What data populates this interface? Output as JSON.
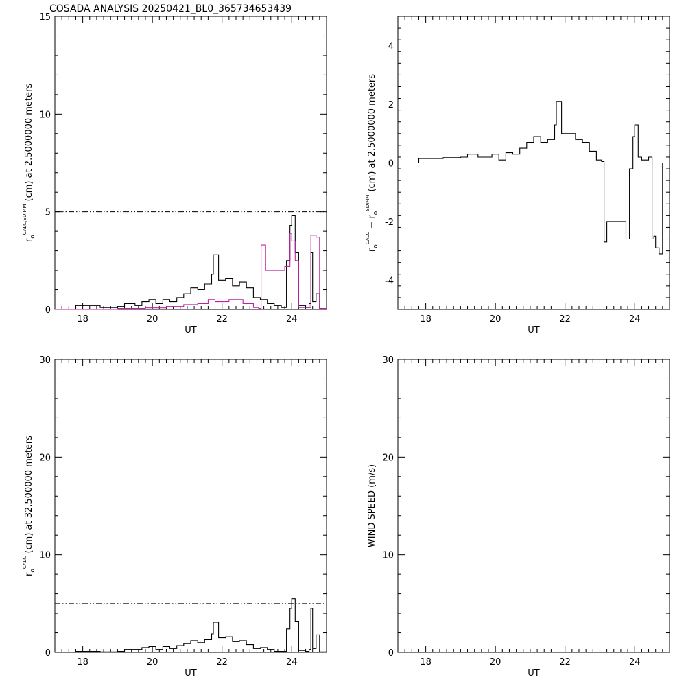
{
  "figure": {
    "title": "COSADA ANALYSIS 20250421_BL0_365734653439"
  },
  "chart_data": [
    {
      "id": "top-left",
      "type": "line",
      "xlabel": "UT",
      "ylabel": {
        "symbol": "r",
        "subscript": "o",
        "superscript": "CALC,SDIMM",
        "suffix": "(cm)  at  2.5000000 meters"
      },
      "xlim": [
        17.2,
        25.0
      ],
      "ylim": [
        0,
        15
      ],
      "xticks": [
        18,
        20,
        22,
        24
      ],
      "yticks": [
        0,
        5,
        10,
        15
      ],
      "reference_line": {
        "y": 5,
        "style": "dash-dot-dot",
        "color": "#000000"
      },
      "series": [
        {
          "color": "#000000",
          "x": [
            17.2,
            17.8,
            18.5,
            19.0,
            19.2,
            19.5,
            19.7,
            19.9,
            20.1,
            20.3,
            20.5,
            20.7,
            20.9,
            21.1,
            21.3,
            21.5,
            21.7,
            21.75,
            21.9,
            22.1,
            22.3,
            22.5,
            22.7,
            22.9,
            23.1,
            23.3,
            23.5,
            23.7,
            23.85,
            23.95,
            24.0,
            24.1,
            24.2,
            24.4,
            24.5,
            24.55,
            24.6,
            24.7,
            24.8,
            25.0
          ],
          "y": [
            0.0,
            0.2,
            0.1,
            0.15,
            0.3,
            0.2,
            0.4,
            0.5,
            0.3,
            0.5,
            0.4,
            0.6,
            0.8,
            1.1,
            1.0,
            1.3,
            1.8,
            2.8,
            1.5,
            1.6,
            1.2,
            1.4,
            1.1,
            0.6,
            0.5,
            0.3,
            0.2,
            0.1,
            2.5,
            4.3,
            4.8,
            2.9,
            0.2,
            0.1,
            0.3,
            2.9,
            0.4,
            0.8,
            0.05,
            0.05
          ]
        },
        {
          "color": "#c020a0",
          "x": [
            17.2,
            18.0,
            19.0,
            19.8,
            20.4,
            20.9,
            21.3,
            21.6,
            21.8,
            22.0,
            22.2,
            22.6,
            22.9,
            23.05,
            23.12,
            23.25,
            23.6,
            23.8,
            23.95,
            24.0,
            24.1,
            24.2,
            24.4,
            24.5,
            24.55,
            24.7,
            24.8,
            25.0
          ],
          "y": [
            0.0,
            0.0,
            0.05,
            0.08,
            0.15,
            0.25,
            0.3,
            0.5,
            0.4,
            0.4,
            0.5,
            0.3,
            0.1,
            0.05,
            3.3,
            2.0,
            2.0,
            2.2,
            3.9,
            3.5,
            2.5,
            0.1,
            0.1,
            0.1,
            3.8,
            3.7,
            0.05,
            0.0
          ]
        }
      ]
    },
    {
      "id": "top-right",
      "type": "line",
      "xlabel": "UT",
      "ylabel": {
        "symbol": "r",
        "subscript": "o",
        "superscript": "CALC",
        "middle": "− r",
        "subscript2": "o",
        "superscript2": "SDIMM",
        "suffix": "(cm) at 2.5000000 meters"
      },
      "xlim": [
        17.2,
        25.0
      ],
      "ylim": [
        -5,
        5
      ],
      "xticks": [
        18,
        20,
        22,
        24
      ],
      "yticks": [
        -4,
        -2,
        0,
        2,
        4
      ],
      "series": [
        {
          "color": "#000000",
          "x": [
            17.2,
            17.8,
            18.5,
            19.0,
            19.2,
            19.5,
            19.7,
            19.9,
            20.1,
            20.3,
            20.5,
            20.7,
            20.9,
            21.1,
            21.3,
            21.5,
            21.7,
            21.75,
            21.9,
            22.1,
            22.3,
            22.5,
            22.7,
            22.9,
            23.05,
            23.12,
            23.2,
            23.6,
            23.75,
            23.85,
            23.95,
            24.0,
            24.1,
            24.2,
            24.4,
            24.5,
            24.55,
            24.6,
            24.7,
            24.8,
            25.0
          ],
          "y": [
            0.0,
            0.15,
            0.18,
            0.2,
            0.3,
            0.2,
            0.2,
            0.3,
            0.1,
            0.35,
            0.3,
            0.5,
            0.7,
            0.9,
            0.7,
            0.8,
            1.3,
            2.1,
            1.0,
            1.0,
            0.8,
            0.7,
            0.4,
            0.1,
            0.05,
            -2.7,
            -2.0,
            -2.0,
            -2.6,
            -0.2,
            0.9,
            1.3,
            0.2,
            0.1,
            0.2,
            -2.6,
            -2.5,
            -2.9,
            -3.1,
            0.0,
            0.0
          ]
        }
      ]
    },
    {
      "id": "bottom-left",
      "type": "line",
      "xlabel": "UT",
      "ylabel": {
        "symbol": "r",
        "subscript": "o",
        "superscript": "CALC",
        "suffix": "(cm)  at  32.500000 meters"
      },
      "xlim": [
        17.2,
        25.0
      ],
      "ylim": [
        0,
        30
      ],
      "xticks": [
        18,
        20,
        22,
        24
      ],
      "yticks": [
        0,
        10,
        20,
        30
      ],
      "reference_line": {
        "y": 5,
        "style": "dash-dot-dot",
        "color": "#000000"
      },
      "series": [
        {
          "color": "#000000",
          "x": [
            17.2,
            17.8,
            18.5,
            19.0,
            19.2,
            19.5,
            19.7,
            19.9,
            20.1,
            20.3,
            20.5,
            20.7,
            20.9,
            21.1,
            21.3,
            21.5,
            21.7,
            21.75,
            21.9,
            22.1,
            22.3,
            22.5,
            22.7,
            22.9,
            23.1,
            23.3,
            23.5,
            23.7,
            23.85,
            23.95,
            24.0,
            24.1,
            24.2,
            24.4,
            24.5,
            24.55,
            24.6,
            24.7,
            24.8,
            25.0
          ],
          "y": [
            0.0,
            0.1,
            0.05,
            0.1,
            0.3,
            0.3,
            0.5,
            0.6,
            0.3,
            0.6,
            0.4,
            0.7,
            0.9,
            1.2,
            1.0,
            1.3,
            1.9,
            3.1,
            1.5,
            1.6,
            1.1,
            1.2,
            0.8,
            0.4,
            0.5,
            0.3,
            0.1,
            0.1,
            2.4,
            4.5,
            5.5,
            3.2,
            0.2,
            0.1,
            0.3,
            4.5,
            0.4,
            1.8,
            0.05,
            0.05
          ]
        }
      ]
    },
    {
      "id": "bottom-right",
      "type": "line",
      "xlabel": "UT",
      "ylabel": {
        "symbol": "WIND SPEED (m/s)",
        "subscript": "",
        "superscript": "",
        "suffix": ""
      },
      "xlim": [
        17.2,
        25.0
      ],
      "ylim": [
        0,
        30
      ],
      "xticks": [
        18,
        20,
        22,
        24
      ],
      "yticks": [
        0,
        10,
        20,
        30
      ],
      "series": []
    }
  ]
}
